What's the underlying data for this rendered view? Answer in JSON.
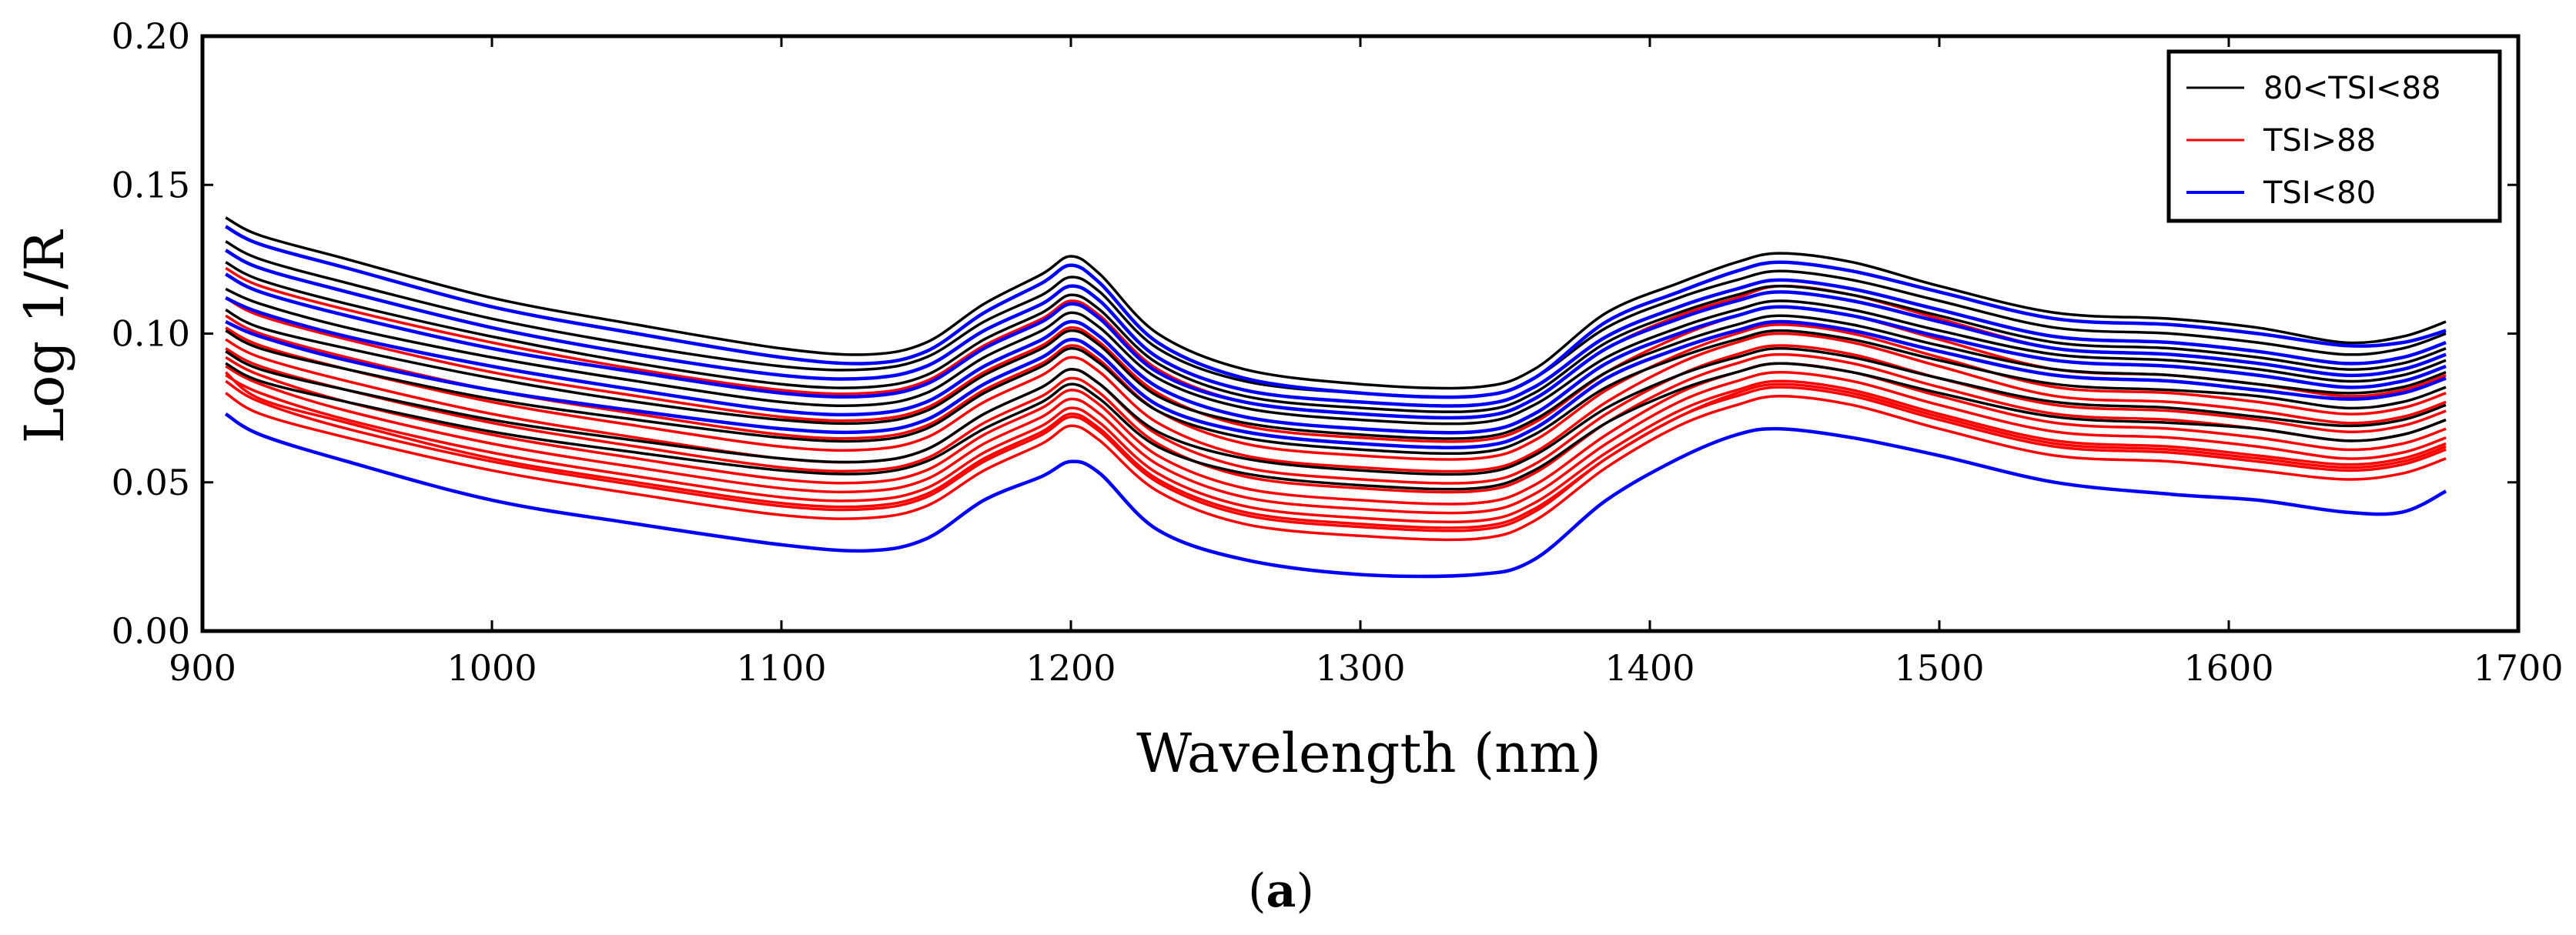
{
  "chart_data": {
    "type": "line",
    "title": "",
    "xlabel": "Wavelength (nm)",
    "ylabel": "Log 1/R",
    "xlim": [
      900,
      1700
    ],
    "ylim": [
      0.0,
      0.2
    ],
    "x_ticks": [
      900,
      1000,
      1100,
      1200,
      1300,
      1400,
      1500,
      1600,
      1700
    ],
    "y_ticks": [
      0.0,
      0.05,
      0.1,
      0.15,
      0.2
    ],
    "x_tick_labels": [
      "900",
      "1000",
      "1100",
      "1200",
      "1300",
      "1400",
      "1500",
      "1600",
      "1700"
    ],
    "y_tick_labels": [
      "0.00",
      "0.05",
      "0.10",
      "0.15",
      "0.20"
    ],
    "grid": false,
    "legend_position": "top-right",
    "x": [
      908,
      920,
      950,
      1000,
      1050,
      1100,
      1130,
      1150,
      1170,
      1190,
      1200,
      1210,
      1230,
      1260,
      1300,
      1340,
      1360,
      1385,
      1410,
      1430,
      1445,
      1470,
      1500,
      1540,
      1580,
      1610,
      1640,
      1660,
      1675
    ],
    "groups": [
      {
        "name": "80<TSI<88",
        "color": "#000000",
        "series": [
          {
            "name": "80<TSI<88",
            "values": [
              0.139,
              0.133,
              0.125,
              0.112,
              0.103,
              0.095,
              0.093,
              0.097,
              0.11,
              0.12,
              0.126,
              0.12,
              0.1,
              0.088,
              0.083,
              0.082,
              0.088,
              0.107,
              0.117,
              0.124,
              0.127,
              0.124,
              0.116,
              0.107,
              0.105,
              0.102,
              0.097,
              0.099,
              0.104
            ]
          },
          {
            "name": "80<TSI<88",
            "values": [
              0.131,
              0.125,
              0.117,
              0.105,
              0.096,
              0.089,
              0.088,
              0.092,
              0.104,
              0.113,
              0.119,
              0.114,
              0.095,
              0.084,
              0.08,
              0.079,
              0.085,
              0.102,
              0.112,
              0.118,
              0.121,
              0.118,
              0.111,
              0.102,
              0.1,
              0.097,
              0.093,
              0.095,
              0.1
            ]
          },
          {
            "name": "80<TSI<88",
            "values": [
              0.124,
              0.118,
              0.11,
              0.099,
              0.09,
              0.083,
              0.082,
              0.086,
              0.098,
              0.107,
              0.113,
              0.108,
              0.09,
              0.079,
              0.075,
              0.074,
              0.08,
              0.097,
              0.107,
              0.113,
              0.116,
              0.113,
              0.106,
              0.097,
              0.095,
              0.092,
              0.088,
              0.09,
              0.095
            ]
          },
          {
            "name": "80<TSI<88",
            "values": [
              0.115,
              0.11,
              0.102,
              0.092,
              0.084,
              0.077,
              0.076,
              0.08,
              0.092,
              0.101,
              0.107,
              0.102,
              0.085,
              0.075,
              0.071,
              0.07,
              0.076,
              0.092,
              0.102,
              0.108,
              0.111,
              0.108,
              0.101,
              0.093,
              0.091,
              0.088,
              0.084,
              0.086,
              0.091
            ]
          },
          {
            "name": "80<TSI<88",
            "values": [
              0.108,
              0.102,
              0.095,
              0.085,
              0.077,
              0.071,
              0.07,
              0.074,
              0.086,
              0.095,
              0.101,
              0.096,
              0.079,
              0.07,
              0.066,
              0.065,
              0.071,
              0.087,
              0.097,
              0.103,
              0.106,
              0.103,
              0.096,
              0.088,
              0.086,
              0.083,
              0.08,
              0.082,
              0.087
            ]
          },
          {
            "name": "80<TSI<88",
            "values": [
              0.101,
              0.095,
              0.088,
              0.078,
              0.071,
              0.065,
              0.064,
              0.068,
              0.08,
              0.089,
              0.095,
              0.09,
              0.074,
              0.065,
              0.061,
              0.06,
              0.066,
              0.082,
              0.092,
              0.098,
              0.101,
              0.098,
              0.091,
              0.083,
              0.081,
              0.079,
              0.075,
              0.077,
              0.082
            ]
          },
          {
            "name": "80<TSI<88",
            "values": [
              0.094,
              0.088,
              0.081,
              0.071,
              0.064,
              0.058,
              0.057,
              0.061,
              0.073,
              0.082,
              0.088,
              0.083,
              0.067,
              0.058,
              0.054,
              0.053,
              0.059,
              0.075,
              0.086,
              0.092,
              0.095,
              0.092,
              0.085,
              0.077,
              0.075,
              0.072,
              0.069,
              0.071,
              0.076
            ]
          },
          {
            "name": "80<TSI<88",
            "values": [
              0.09,
              0.084,
              0.077,
              0.067,
              0.06,
              0.054,
              0.053,
              0.057,
              0.068,
              0.077,
              0.083,
              0.078,
              0.062,
              0.053,
              0.049,
              0.048,
              0.054,
              0.07,
              0.081,
              0.087,
              0.09,
              0.087,
              0.08,
              0.072,
              0.07,
              0.068,
              0.064,
              0.066,
              0.071
            ]
          }
        ]
      },
      {
        "name": "TSI>88",
        "color": "#ff0000",
        "series": [
          {
            "name": "TSI>88",
            "values": [
              0.122,
              0.116,
              0.108,
              0.097,
              0.088,
              0.081,
              0.08,
              0.084,
              0.096,
              0.105,
              0.111,
              0.106,
              0.088,
              0.077,
              0.073,
              0.072,
              0.078,
              0.095,
              0.106,
              0.112,
              0.116,
              0.113,
              0.105,
              0.095,
              0.093,
              0.09,
              0.086,
              0.088,
              0.093
            ]
          },
          {
            "name": "TSI>88",
            "values": [
              0.112,
              0.106,
              0.098,
              0.087,
              0.079,
              0.072,
              0.071,
              0.075,
              0.087,
              0.096,
              0.102,
              0.097,
              0.08,
              0.069,
              0.065,
              0.064,
              0.07,
              0.087,
              0.099,
              0.106,
              0.109,
              0.106,
              0.098,
              0.088,
              0.086,
              0.083,
              0.079,
              0.081,
              0.086
            ]
          },
          {
            "name": "TSI>88",
            "values": [
              0.106,
              0.1,
              0.092,
              0.081,
              0.073,
              0.066,
              0.065,
              0.069,
              0.081,
              0.09,
              0.096,
              0.091,
              0.074,
              0.063,
              0.059,
              0.058,
              0.064,
              0.081,
              0.093,
              0.1,
              0.103,
              0.1,
              0.092,
              0.082,
              0.08,
              0.077,
              0.073,
              0.075,
              0.08
            ]
          },
          {
            "name": "TSI>88",
            "values": [
              0.102,
              0.096,
              0.088,
              0.077,
              0.069,
              0.062,
              0.061,
              0.065,
              0.077,
              0.086,
              0.092,
              0.087,
              0.07,
              0.059,
              0.055,
              0.054,
              0.06,
              0.077,
              0.09,
              0.097,
              0.1,
              0.097,
              0.089,
              0.079,
              0.077,
              0.074,
              0.07,
              0.072,
              0.077
            ]
          },
          {
            "name": "TSI>88",
            "values": [
              0.098,
              0.092,
              0.084,
              0.073,
              0.065,
              0.058,
              0.057,
              0.061,
              0.073,
              0.082,
              0.088,
              0.083,
              0.066,
              0.055,
              0.051,
              0.05,
              0.056,
              0.073,
              0.086,
              0.093,
              0.096,
              0.093,
              0.085,
              0.076,
              0.074,
              0.071,
              0.067,
              0.069,
              0.074
            ]
          },
          {
            "name": "TSI>88",
            "values": [
              0.095,
              0.089,
              0.081,
              0.07,
              0.062,
              0.055,
              0.054,
              0.058,
              0.07,
              0.079,
              0.085,
              0.08,
              0.063,
              0.052,
              0.048,
              0.047,
              0.053,
              0.07,
              0.083,
              0.09,
              0.093,
              0.09,
              0.082,
              0.073,
              0.071,
              0.068,
              0.064,
              0.066,
              0.071
            ]
          },
          {
            "name": "TSI>88",
            "values": [
              0.092,
              0.086,
              0.077,
              0.066,
              0.058,
              0.051,
              0.05,
              0.054,
              0.066,
              0.075,
              0.081,
              0.076,
              0.059,
              0.048,
              0.044,
              0.043,
              0.049,
              0.066,
              0.08,
              0.087,
              0.09,
              0.087,
              0.079,
              0.07,
              0.068,
              0.065,
              0.061,
              0.063,
              0.068
            ]
          },
          {
            "name": "TSI>88",
            "values": [
              0.089,
              0.083,
              0.074,
              0.063,
              0.055,
              0.048,
              0.047,
              0.051,
              0.063,
              0.072,
              0.078,
              0.073,
              0.056,
              0.045,
              0.041,
              0.04,
              0.046,
              0.063,
              0.077,
              0.084,
              0.087,
              0.084,
              0.076,
              0.067,
              0.065,
              0.062,
              0.058,
              0.06,
              0.065
            ]
          },
          {
            "name": "TSI>88",
            "values": [
              0.086,
              0.08,
              0.071,
              0.06,
              0.052,
              0.045,
              0.044,
              0.048,
              0.06,
              0.069,
              0.075,
              0.07,
              0.053,
              0.042,
              0.038,
              0.037,
              0.043,
              0.06,
              0.074,
              0.081,
              0.084,
              0.081,
              0.073,
              0.064,
              0.062,
              0.059,
              0.056,
              0.058,
              0.063
            ]
          },
          {
            "name": "TSI>88",
            "values": [
              0.084,
              0.077,
              0.068,
              0.057,
              0.049,
              0.042,
              0.041,
              0.045,
              0.057,
              0.066,
              0.072,
              0.067,
              0.05,
              0.039,
              0.035,
              0.034,
              0.04,
              0.058,
              0.072,
              0.079,
              0.082,
              0.079,
              0.071,
              0.062,
              0.06,
              0.057,
              0.054,
              0.056,
              0.061
            ]
          },
          {
            "name": "TSI>88",
            "values": [
              0.08,
              0.073,
              0.065,
              0.054,
              0.046,
              0.039,
              0.038,
              0.042,
              0.054,
              0.063,
              0.069,
              0.064,
              0.047,
              0.036,
              0.032,
              0.031,
              0.037,
              0.055,
              0.069,
              0.076,
              0.079,
              0.076,
              0.068,
              0.059,
              0.057,
              0.054,
              0.051,
              0.053,
              0.058
            ]
          },
          {
            "name": "TSI>88",
            "values": [
              0.087,
              0.078,
              0.07,
              0.058,
              0.05,
              0.043,
              0.042,
              0.046,
              0.058,
              0.067,
              0.073,
              0.068,
              0.051,
              0.04,
              0.036,
              0.035,
              0.041,
              0.058,
              0.072,
              0.08,
              0.083,
              0.08,
              0.072,
              0.063,
              0.061,
              0.058,
              0.055,
              0.057,
              0.062
            ]
          }
        ]
      },
      {
        "name": "TSI<80",
        "color": "#0000ff",
        "series": [
          {
            "name": "TSI<80",
            "values": [
              0.136,
              0.13,
              0.122,
              0.109,
              0.1,
              0.092,
              0.09,
              0.094,
              0.107,
              0.117,
              0.123,
              0.117,
              0.097,
              0.085,
              0.08,
              0.079,
              0.085,
              0.104,
              0.114,
              0.121,
              0.124,
              0.121,
              0.114,
              0.105,
              0.103,
              0.1,
              0.096,
              0.097,
              0.101
            ]
          },
          {
            "name": "TSI<80",
            "values": [
              0.128,
              0.122,
              0.114,
              0.102,
              0.093,
              0.086,
              0.085,
              0.089,
              0.101,
              0.11,
              0.116,
              0.111,
              0.092,
              0.081,
              0.077,
              0.076,
              0.082,
              0.099,
              0.109,
              0.115,
              0.118,
              0.115,
              0.108,
              0.099,
              0.097,
              0.094,
              0.09,
              0.092,
              0.097
            ]
          },
          {
            "name": "TSI<80",
            "values": [
              0.12,
              0.114,
              0.106,
              0.095,
              0.087,
              0.08,
              0.079,
              0.083,
              0.095,
              0.104,
              0.11,
              0.105,
              0.087,
              0.077,
              0.073,
              0.072,
              0.078,
              0.095,
              0.105,
              0.111,
              0.114,
              0.111,
              0.104,
              0.095,
              0.093,
              0.09,
              0.086,
              0.088,
              0.093
            ]
          },
          {
            "name": "TSI<80",
            "values": [
              0.112,
              0.107,
              0.099,
              0.089,
              0.081,
              0.074,
              0.073,
              0.077,
              0.089,
              0.098,
              0.104,
              0.099,
              0.082,
              0.072,
              0.068,
              0.067,
              0.073,
              0.09,
              0.1,
              0.106,
              0.109,
              0.106,
              0.099,
              0.091,
              0.089,
              0.086,
              0.082,
              0.084,
              0.089
            ]
          },
          {
            "name": "TSI<80",
            "values": [
              0.104,
              0.099,
              0.091,
              0.081,
              0.074,
              0.068,
              0.067,
              0.071,
              0.083,
              0.092,
              0.098,
              0.093,
              0.076,
              0.067,
              0.063,
              0.062,
              0.068,
              0.085,
              0.095,
              0.101,
              0.104,
              0.101,
              0.094,
              0.086,
              0.084,
              0.081,
              0.078,
              0.08,
              0.085
            ]
          },
          {
            "name": "TSI<80",
            "values": [
              0.073,
              0.066,
              0.057,
              0.044,
              0.036,
              0.029,
              0.027,
              0.031,
              0.044,
              0.052,
              0.057,
              0.053,
              0.034,
              0.024,
              0.019,
              0.019,
              0.024,
              0.044,
              0.058,
              0.066,
              0.068,
              0.065,
              0.059,
              0.05,
              0.046,
              0.044,
              0.04,
              0.04,
              0.047
            ]
          }
        ]
      }
    ],
    "legend": [
      {
        "label": "80<TSI<88",
        "color": "#000000"
      },
      {
        "label": "TSI>88",
        "color": "#ff0000"
      },
      {
        "label": "TSI<80",
        "color": "#0000ff"
      }
    ]
  },
  "caption": {
    "open": "(",
    "letter": "a",
    "close": ")"
  }
}
